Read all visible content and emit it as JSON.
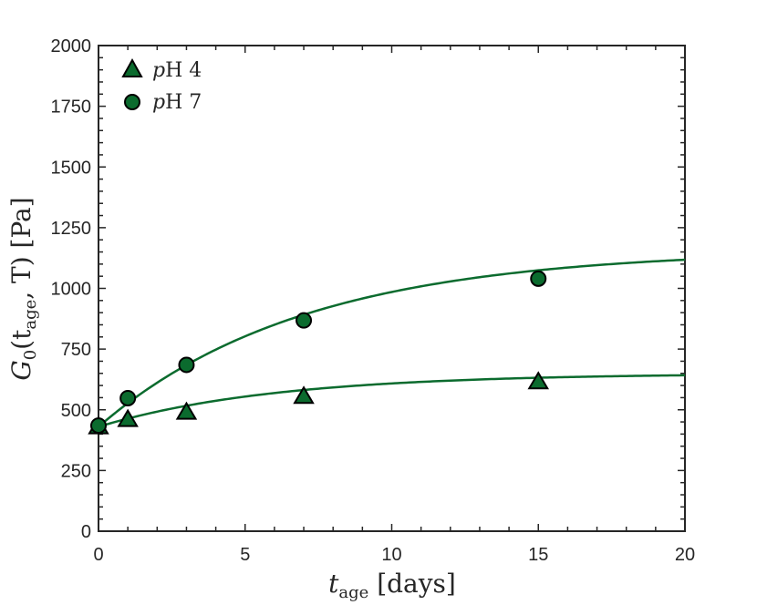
{
  "chart_data": {
    "type": "scatter",
    "xlabel": {
      "main": "t",
      "sub": "age",
      "rest": " [days]"
    },
    "ylabel": {
      "main": "G",
      "sub": "0",
      "rest": "(t",
      "sub2": "age",
      "rest2": ", T) [Pa]"
    },
    "xlim": [
      0,
      20
    ],
    "ylim": [
      0,
      2000
    ],
    "xticks": [
      0,
      5,
      10,
      15,
      20
    ],
    "yticks": [
      0,
      250,
      500,
      750,
      1000,
      1250,
      1500,
      1750,
      2000
    ],
    "grid": false,
    "legend_position": "top-left",
    "series": [
      {
        "name": "pH 4",
        "legend_italic": "p",
        "legend_rest": "H 4",
        "marker": "triangle",
        "color": "#0b6b2e",
        "x": [
          0,
          1,
          3,
          7,
          15
        ],
        "y": [
          435,
          465,
          495,
          560,
          620
        ],
        "fit": {
          "model": "saturating_exponential",
          "y0": 430,
          "amplitude": 220,
          "tau": 6
        }
      },
      {
        "name": "pH 7",
        "legend_italic": "p",
        "legend_rest": "H 7",
        "marker": "circle",
        "color": "#0b6b2e",
        "x": [
          0,
          1,
          3,
          7,
          15
        ],
        "y": [
          435,
          548,
          685,
          868,
          1040
        ],
        "fit": {
          "model": "saturating_exponential",
          "y0": 430,
          "amplitude": 730,
          "tau": 7
        }
      }
    ]
  }
}
